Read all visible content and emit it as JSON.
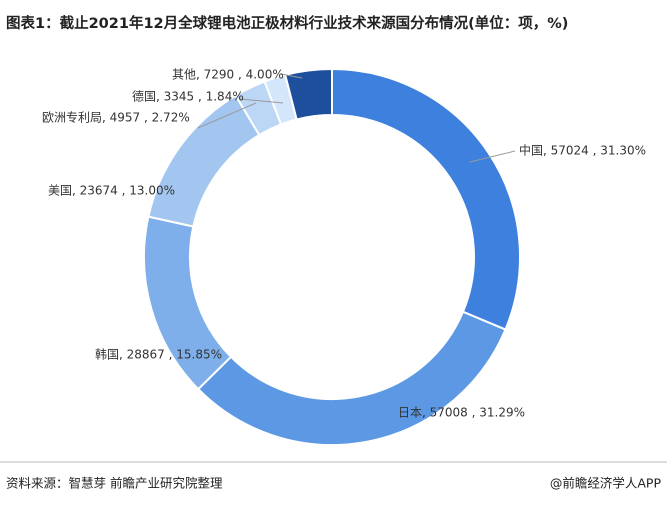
{
  "chart_data": {
    "type": "donut",
    "title": "图表1：截止2021年12月全球锂电池正极材料行业技术来源国分布情况(单位：项，%)",
    "values": [
      57024,
      57008,
      28867,
      23674,
      4957,
      3345,
      7290
    ],
    "value_labels": [
      "中国, 57024 , 31.30%",
      "日本, 57008 , 31.29%",
      "韩国, 28867 , 15.85%",
      "美国, 23674 , 13.00%",
      "欧洲专利局, 4957 , 2.72%",
      "德国, 3345 , 1.84%",
      "其他, 7290 , 4.00%"
    ],
    "colors": [
      "#3d80de",
      "#5c98e4",
      "#7eafeb",
      "#a3c6f1",
      "#bcd6f6",
      "#d4e6fa",
      "#1d4f9d"
    ],
    "source": "资料来源：智慧芽 前瞻产业研究院整理",
    "watermark": "@前瞻经济学人APP"
  }
}
